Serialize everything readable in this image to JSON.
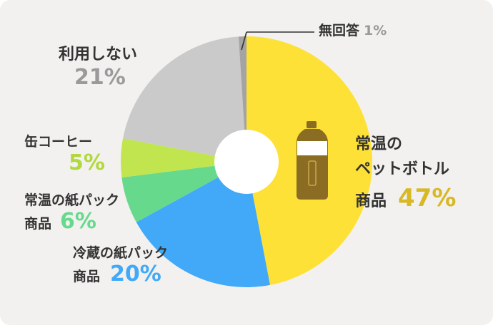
{
  "chart_data": {
    "type": "pie",
    "title": "",
    "donut": true,
    "categories": [
      "常温のペットボトル商品",
      "冷蔵の紙パック商品",
      "常温の紙パック商品",
      "缶コーヒー",
      "利用しない",
      "無回答"
    ],
    "values": [
      47,
      20,
      6,
      5,
      21,
      1
    ],
    "colors": [
      "#fde136",
      "#41a9f7",
      "#67d98c",
      "#c1e54f",
      "#cacaca",
      "#a4a4a4"
    ],
    "pct_colors": [
      "#d8b825",
      "#41a9f7",
      "#67d98c",
      "#b1d83c",
      "#9a9a9a",
      "#9a9a9a"
    ],
    "labels": {
      "pet": {
        "l1": "常温の",
        "l2": "ペットボトル",
        "l3": "商品",
        "pct": "47%"
      },
      "chilled": {
        "l1": "冷蔵の紙パック",
        "l2": "商品",
        "pct": "20%"
      },
      "ambient": {
        "l1": "常温の紙パック",
        "l2": "商品",
        "pct": "6%"
      },
      "can": {
        "l1": "缶コーヒー",
        "pct": "5%"
      },
      "none": {
        "l1": "利用しない",
        "pct": "21%"
      },
      "noans": {
        "l1": "無回答",
        "pct": "1%"
      }
    },
    "legend": "none"
  },
  "icon": "pet-bottle-icon"
}
